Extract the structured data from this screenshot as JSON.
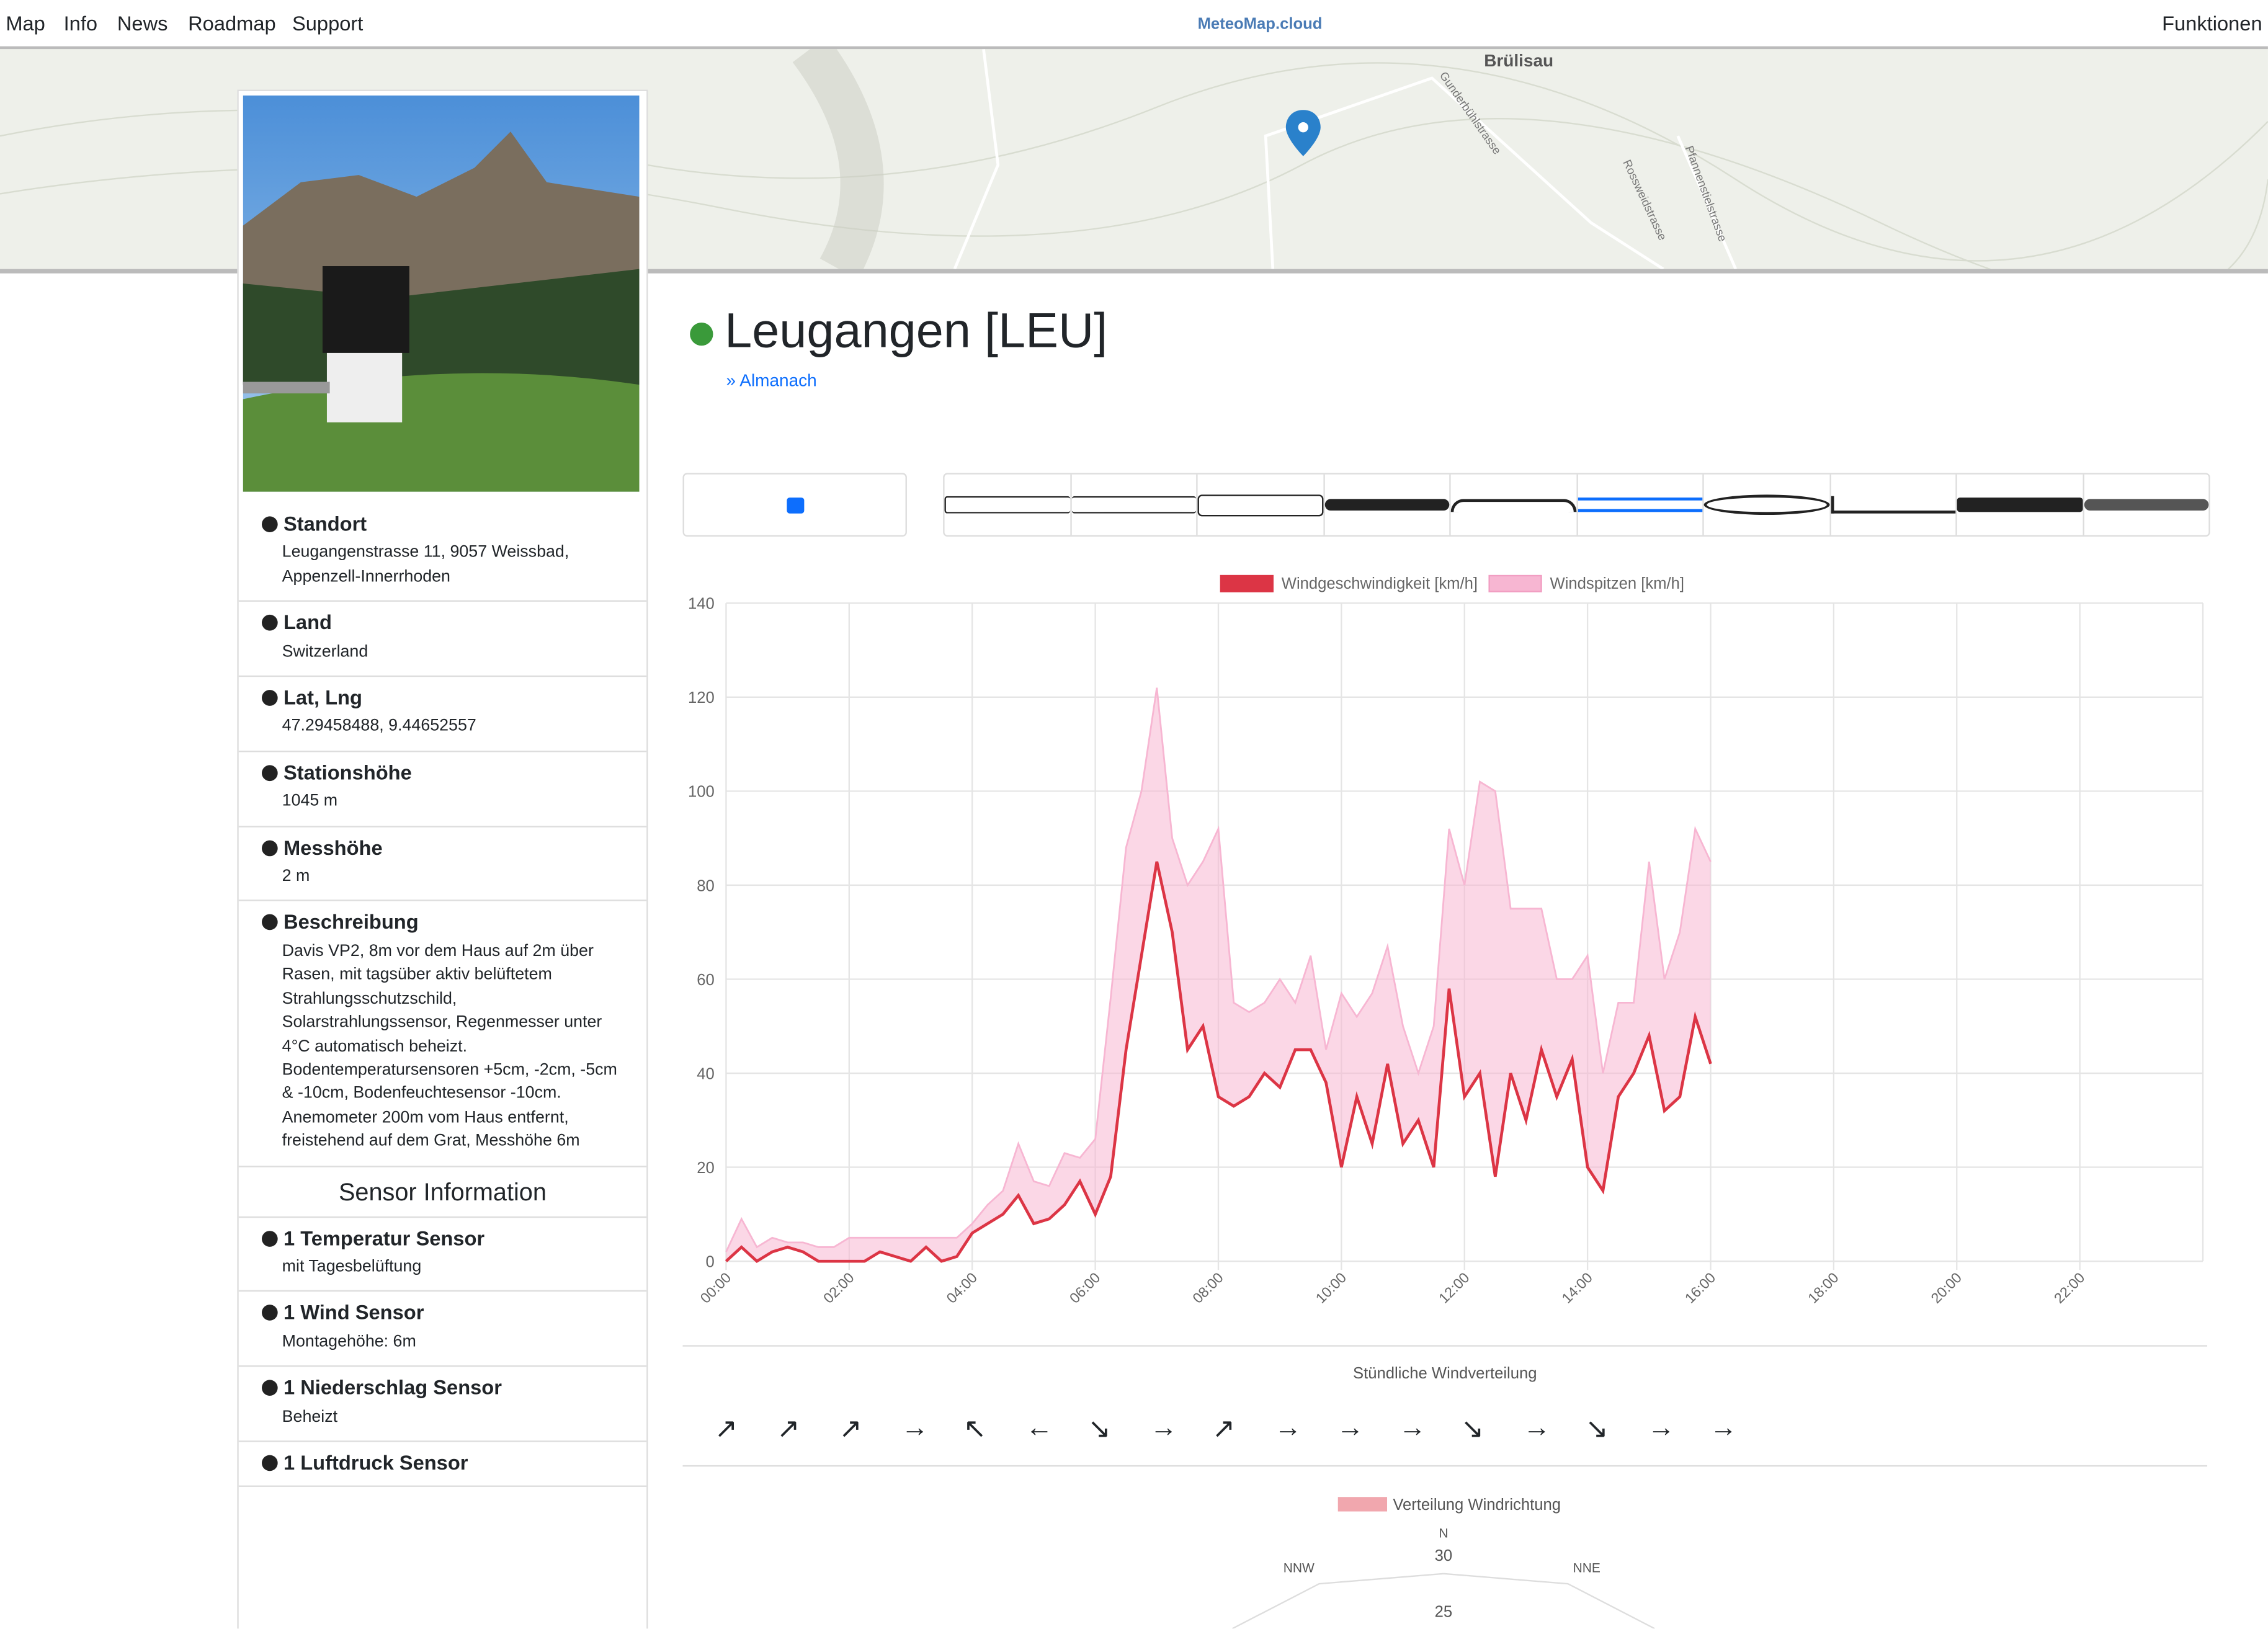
{
  "nav": {
    "links": [
      "Map",
      "Info",
      "News",
      "Roadmap",
      "Support"
    ],
    "logo": "MeteoMap.cloud",
    "right": "Funktionen"
  },
  "map": {
    "labels": [
      "Brülisau",
      "Gunderbühlstrasse",
      "Rossweidstrasse",
      "Pfannenstielstrasse"
    ]
  },
  "station": {
    "name": "Leugangen [LEU]",
    "link": "Almanach"
  },
  "info": [
    {
      "title": "Standort",
      "text": "Leugangenstrasse 11, 9057 Weissbad, Appenzell-Innerrhoden"
    },
    {
      "title": "Land",
      "text": "Switzerland"
    },
    {
      "title": "Lat, Lng",
      "text": "47.29458488, 9.44652557"
    },
    {
      "title": "Stationshöhe",
      "text": "1045 m"
    },
    {
      "title": "Messhöhe",
      "text": "2 m"
    },
    {
      "title": "Beschreibung",
      "text": "Davis VP2, 8m vor dem Haus auf 2m über Rasen, mit tagsüber aktiv belüftetem Strahlungsschutzschild, Solarstrahlungssensor, Regenmesser unter 4°C automatisch beheizt. Bodentemperatursensoren +5cm, -2cm, -5cm & -10cm, Bodenfeuchtesensor -10cm. Anemometer 200m vom Haus entfernt, freistehend auf dem Grat, Messhöhe 6m"
    }
  ],
  "sensor_heading": "Sensor Information",
  "sensors": [
    {
      "title": "1 Temperatur Sensor",
      "text": "mit Tagesbelüftung"
    },
    {
      "title": "1 Wind Sensor",
      "text": "Montagehöhe: 6m"
    },
    {
      "title": "1 Niederschlag Sensor",
      "text": "Beheizt"
    },
    {
      "title": "1 Luftdruck Sensor"
    }
  ],
  "chart_data": {
    "type": "line",
    "x": [
      0,
      0.25,
      0.5,
      0.75,
      1,
      1.25,
      1.5,
      1.75,
      2,
      2.25,
      2.5,
      2.75,
      3,
      3.25,
      3.5,
      3.75,
      4,
      4.25,
      4.5,
      4.75,
      5,
      5.25,
      5.5,
      5.75,
      6,
      6.25,
      6.5,
      6.75,
      7,
      7.25,
      7.5,
      7.75,
      8,
      8.25,
      8.5,
      8.75,
      9,
      9.25,
      9.5,
      9.75,
      10,
      10.25,
      10.5,
      10.75,
      11,
      11.25,
      11.5,
      11.75,
      12,
      12.25,
      12.5,
      12.75,
      13,
      13.25,
      13.5,
      13.75,
      14,
      14.25,
      14.5,
      14.75,
      15,
      15.25,
      15.5,
      15.75,
      16
    ],
    "series": [
      {
        "name": "Windgeschwindigkeit [km/h]",
        "color": "#dc3545",
        "values": [
          0,
          3,
          0,
          2,
          3,
          2,
          0,
          0,
          0,
          0,
          2,
          1,
          0,
          3,
          0,
          1,
          6,
          8,
          10,
          14,
          8,
          9,
          12,
          17,
          10,
          18,
          45,
          65,
          85,
          70,
          45,
          50,
          35,
          33,
          35,
          40,
          37,
          45,
          45,
          38,
          20,
          35,
          25,
          42,
          25,
          30,
          20,
          58,
          35,
          40,
          18,
          40,
          30,
          45,
          35,
          43,
          20,
          15,
          35,
          40,
          48,
          32,
          35,
          52,
          42
        ]
      },
      {
        "name": "Windspitzen [km/h]",
        "color": "#f7b6d2",
        "values": [
          2,
          9,
          3,
          5,
          4,
          4,
          3,
          3,
          5,
          5,
          5,
          5,
          5,
          5,
          5,
          5,
          8,
          12,
          15,
          25,
          17,
          16,
          23,
          22,
          26,
          56,
          88,
          100,
          122,
          90,
          80,
          85,
          92,
          55,
          53,
          55,
          60,
          55,
          65,
          45,
          57,
          52,
          57,
          67,
          50,
          40,
          50,
          92,
          80,
          102,
          100,
          75,
          75,
          75,
          60,
          60,
          65,
          40,
          55,
          55,
          85,
          60,
          70,
          92,
          85
        ]
      }
    ],
    "xlim": [
      0,
      24
    ],
    "xticks": [
      {
        "value": 0,
        "label": "00:00"
      },
      {
        "value": 2,
        "label": "02:00"
      },
      {
        "value": 4,
        "label": "04:00"
      },
      {
        "value": 6,
        "label": "06:00"
      },
      {
        "value": 8,
        "label": "08:00"
      },
      {
        "value": 10,
        "label": "10:00"
      },
      {
        "value": 12,
        "label": "12:00"
      },
      {
        "value": 14,
        "label": "14:00"
      },
      {
        "value": 16,
        "label": "16:00"
      },
      {
        "value": 18,
        "label": "18:00"
      },
      {
        "value": 20,
        "label": "20:00"
      },
      {
        "value": 22,
        "label": "22:00"
      }
    ],
    "ylim": [
      0,
      140
    ],
    "yticks": [
      0,
      20,
      40,
      60,
      80,
      100,
      120,
      140
    ],
    "grid": true
  },
  "wind_distribution": {
    "title": "Stündliche Windverteilung",
    "arrows": [
      "↗",
      "↗",
      "↗",
      "→",
      "↖",
      "←",
      "↘",
      "→",
      "↗",
      "→",
      "→",
      "→",
      "↘",
      "→",
      "↘",
      "→",
      "→"
    ]
  },
  "polar": {
    "legend": "Verteilung Windrichtung",
    "labels": [
      "N",
      "NNW",
      "NNE"
    ],
    "ticks": [
      30,
      25
    ]
  }
}
